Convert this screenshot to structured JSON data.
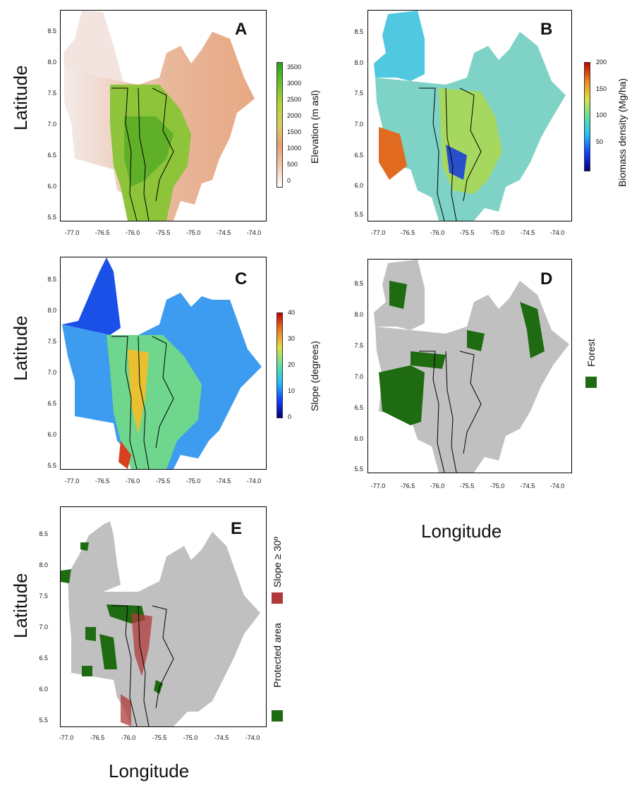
{
  "axes": {
    "ylabel": "Latitude",
    "xlabel": "Longitude",
    "xticks": [
      "-77.0",
      "-76.5",
      "-76.0",
      "-75.5",
      "-75.0",
      "-74.5",
      "-74.0"
    ],
    "yticks": [
      "8.5",
      "8.0",
      "7.5",
      "7.0",
      "6.5",
      "6.0",
      "5.5"
    ]
  },
  "panels": [
    {
      "letter": "A",
      "legend_title": "Elevation (m asl)",
      "legend_ticks": [
        "3500",
        "3000",
        "2500",
        "2000",
        "1500",
        "1000",
        "500",
        "0"
      ],
      "colors": {
        "fill": "#e8b28f",
        "low": "#f3e1dc",
        "high": "#45a820"
      }
    },
    {
      "letter": "B",
      "legend_title": "Biomass density (Mg/ha)",
      "legend_ticks": [
        "200",
        "150",
        "100",
        "50"
      ],
      "colors": {
        "fill": "#7fd0d8",
        "high": "#b30000",
        "low": "#000090"
      }
    },
    {
      "letter": "C",
      "legend_title": "Slope (degrees)",
      "legend_ticks": [
        "40",
        "30",
        "20",
        "10",
        "0"
      ],
      "colors": {
        "fill": "#2060f0",
        "high": "#b30000",
        "low": "#000090"
      }
    },
    {
      "letter": "D",
      "legend_items": [
        {
          "label": "Forest",
          "color": "#1e6b12"
        }
      ],
      "colors": {
        "fill": "#c0c0c0",
        "forest": "#1e6b12"
      }
    },
    {
      "letter": "E",
      "legend_items": [
        {
          "label": "Slope ≥ 30º",
          "color": "#b03a3a"
        },
        {
          "label": "Protected area",
          "color": "#1e6b12"
        }
      ],
      "colors": {
        "fill": "#c0c0c0",
        "protected": "#1e6b12",
        "slope": "#b03a3a"
      }
    }
  ]
}
